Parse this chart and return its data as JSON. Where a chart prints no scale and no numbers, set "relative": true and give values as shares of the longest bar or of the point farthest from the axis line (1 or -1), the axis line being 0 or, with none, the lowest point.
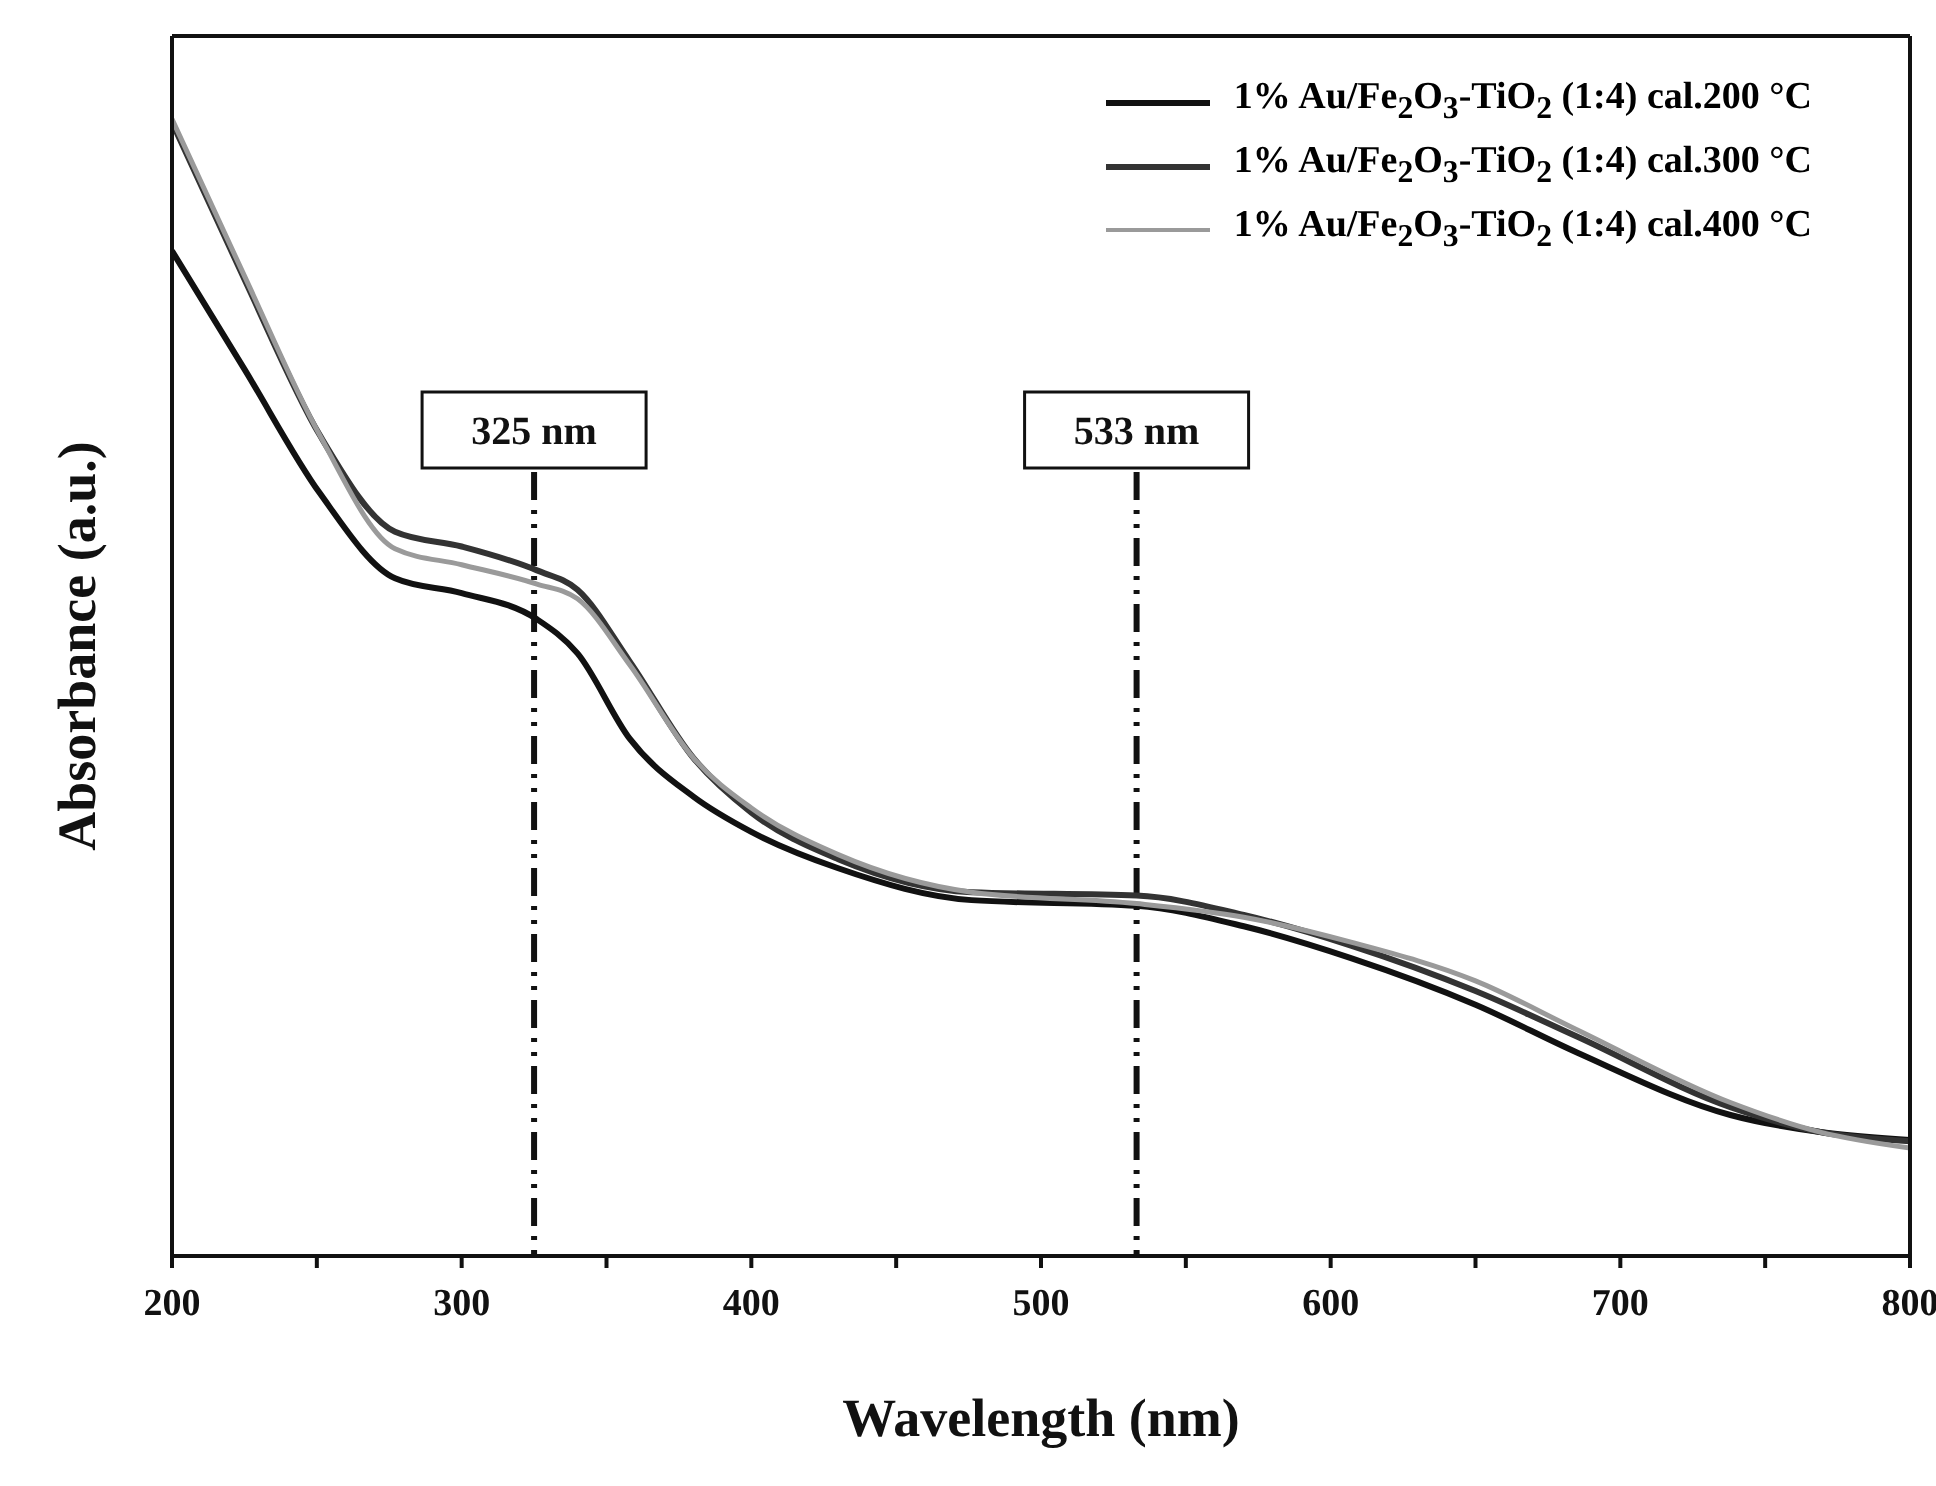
{
  "chart_data": {
    "type": "line",
    "xlabel": "Wavelength (nm)",
    "ylabel": "Absorbance (a.u.)",
    "relative": true,
    "x": [
      200,
      225,
      251,
      277,
      300,
      326,
      340,
      358,
      380,
      400,
      430,
      476,
      533,
      570,
      607,
      650,
      685,
      738,
      769,
      800
    ],
    "xlim": [
      200,
      800
    ],
    "xticks": [
      200,
      {
        "value": 250,
        "label": null
      },
      300,
      {
        "value": 350,
        "label": null
      },
      400,
      {
        "value": 450,
        "label": null
      },
      500,
      {
        "value": 550,
        "label": null
      },
      600,
      {
        "value": 650,
        "label": null
      },
      700,
      {
        "value": 750,
        "label": null
      },
      800
    ],
    "series": [
      {
        "name": "1% Au/Fe$_{2}$O$_{3}$-TiO$_{2}$ (1:4) cal.200 °C",
        "color": "#111111",
        "values": [
          0.884,
          0.78,
          0.671,
          0.596,
          0.583,
          0.56,
          0.53,
          0.455,
          0.404,
          0.373,
          0.341,
          0.313,
          0.308,
          0.29,
          0.262,
          0.221,
          0.179,
          0.124,
          0.109,
          0.102
        ]
      },
      {
        "name": "1% Au/Fe$_{2}$O$_{3}$-TiO$_{2}$ (1:4) cal.300 °C",
        "color": "#333333",
        "values": [
          0.997,
          0.859,
          0.722,
          0.637,
          0.624,
          0.603,
          0.586,
          0.523,
          0.438,
          0.39,
          0.349,
          0.32,
          0.317,
          0.3,
          0.273,
          0.233,
          0.193,
          0.131,
          0.109,
          0.101
        ]
      },
      {
        "name": "1% Au/Fe$_{2}$O$_{3}$-TiO$_{2}$ (1:4) cal.400 °C",
        "color": "#9a9a9a",
        "values": [
          1.0,
          0.862,
          0.722,
          0.622,
          0.608,
          0.591,
          0.578,
          0.52,
          0.438,
          0.394,
          0.353,
          0.32,
          0.31,
          0.298,
          0.276,
          0.242,
          0.199,
          0.135,
          0.109,
          0.095
        ]
      }
    ],
    "ref_lines": [
      {
        "axis": "x",
        "value": 325,
        "label": "325 nm",
        "color": "#111111",
        "line_style": "dashed"
      },
      {
        "axis": "x",
        "value": 533,
        "label": "533 nm",
        "color": "#111111",
        "line_style": "dashed"
      }
    ],
    "legend": "top right",
    "line_style": "solid",
    "marker": "none"
  }
}
